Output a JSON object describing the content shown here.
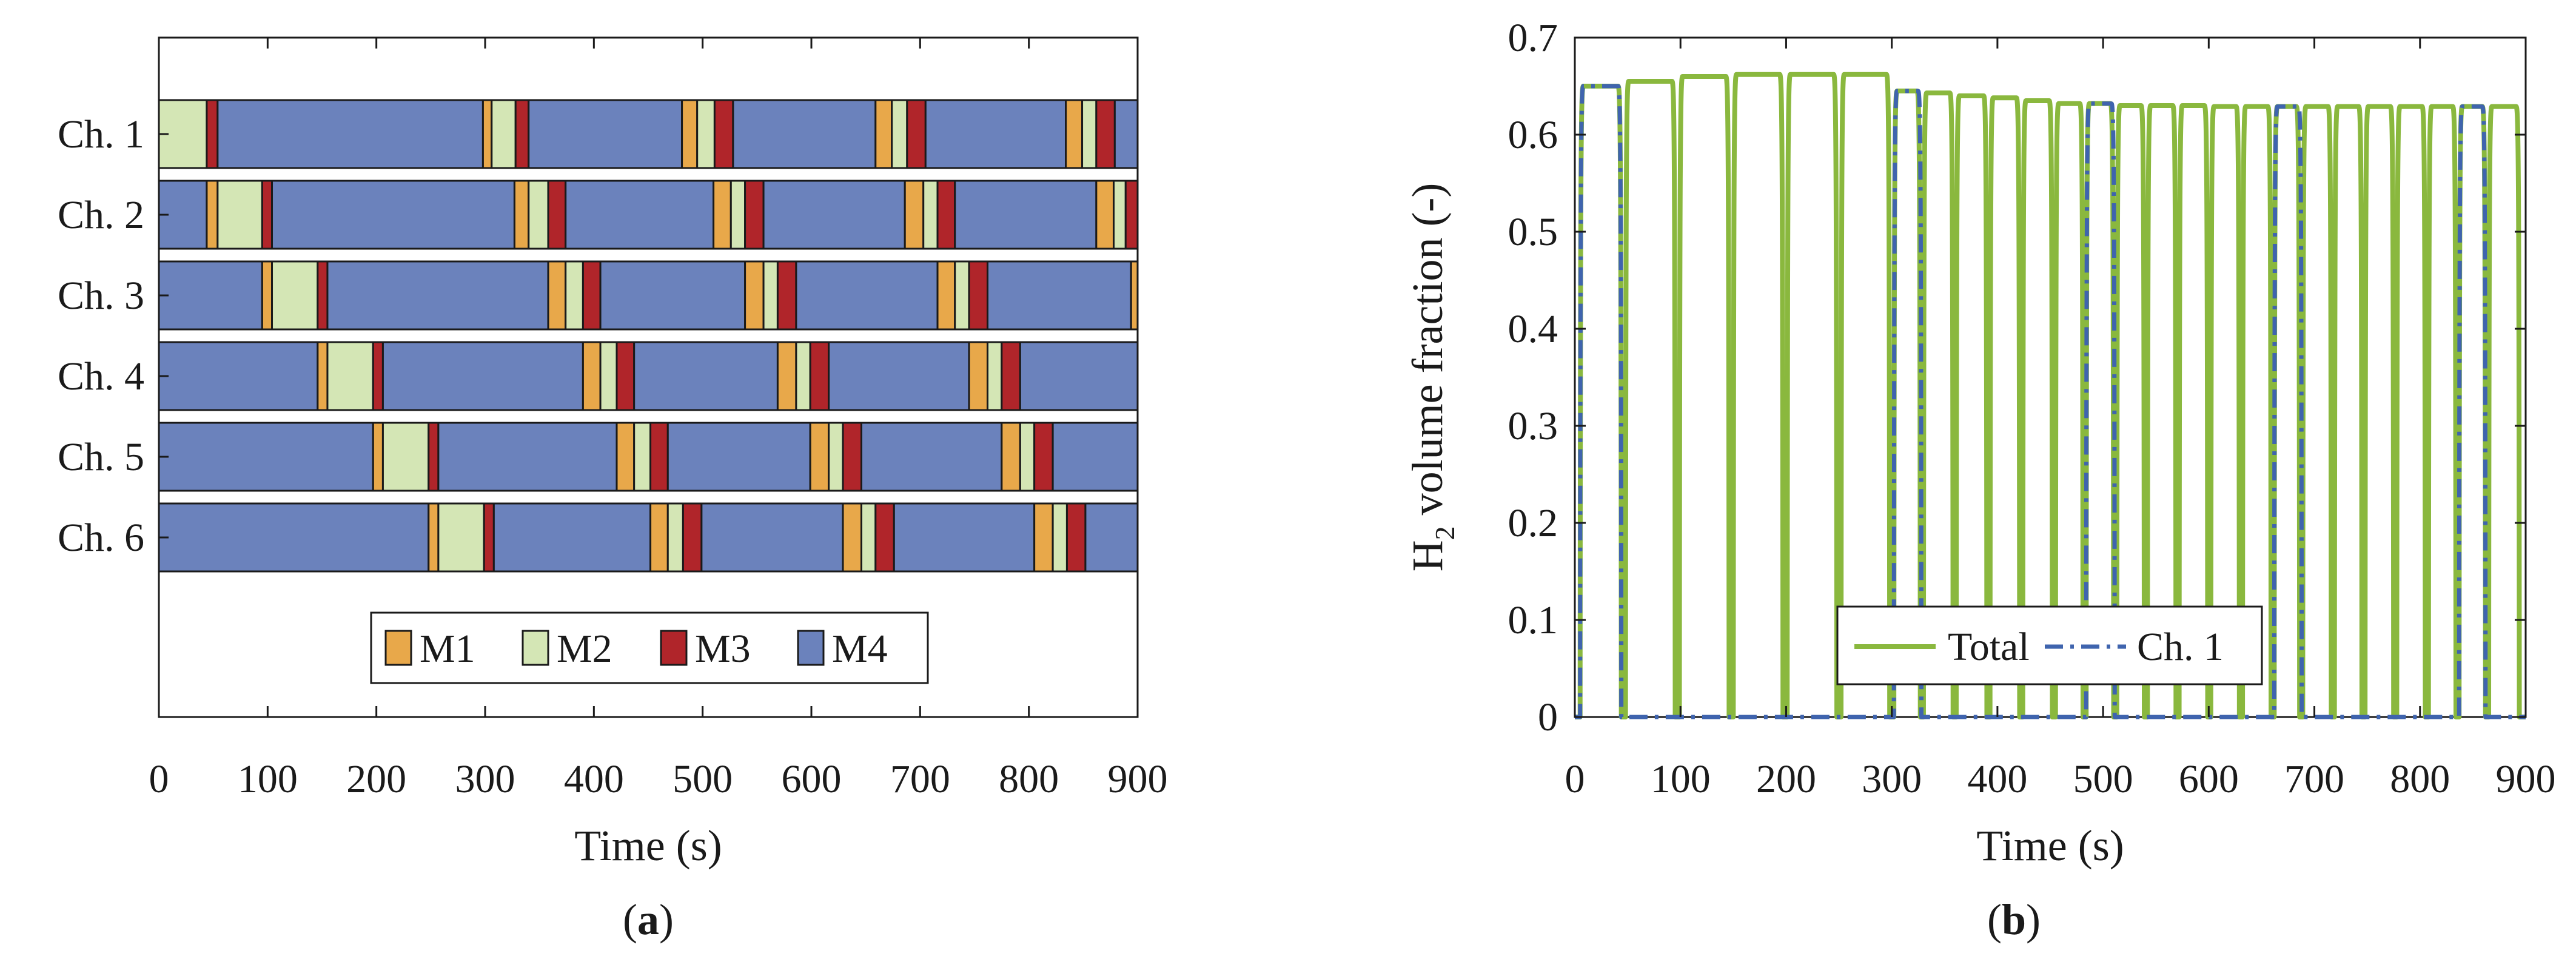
{
  "chart_data": [
    {
      "type": "bar",
      "subtype": "gantt",
      "panel_label": "a",
      "xlabel": "Time (s)",
      "ylabel": "",
      "xlim": [
        0,
        900
      ],
      "xticks": [
        0,
        100,
        200,
        300,
        400,
        500,
        600,
        700,
        800,
        900
      ],
      "categories": [
        "Ch. 1",
        "Ch. 2",
        "Ch. 3",
        "Ch. 4",
        "Ch. 5",
        "Ch. 6"
      ],
      "modes": [
        {
          "name": "M1",
          "color": "#E8A84A"
        },
        {
          "name": "M2",
          "color": "#D4E6B5"
        },
        {
          "name": "M3",
          "color": "#B0252A"
        },
        {
          "name": "M4",
          "color": "#6B82BC"
        }
      ],
      "legend_placement": "bottom-center",
      "rows": [
        {
          "channel": "Ch. 1",
          "segments": [
            {
              "mode": "M2",
              "start": 0,
              "end": 44
            },
            {
              "mode": "M3",
              "start": 44,
              "end": 54
            },
            {
              "mode": "M4",
              "start": 54,
              "end": 298
            },
            {
              "mode": "M1",
              "start": 298,
              "end": 306
            },
            {
              "mode": "M2",
              "start": 306,
              "end": 328
            },
            {
              "mode": "M3",
              "start": 328,
              "end": 340
            },
            {
              "mode": "M4",
              "start": 340,
              "end": 481
            },
            {
              "mode": "M1",
              "start": 481,
              "end": 495
            },
            {
              "mode": "M2",
              "start": 495,
              "end": 511
            },
            {
              "mode": "M3",
              "start": 511,
              "end": 528
            },
            {
              "mode": "M4",
              "start": 528,
              "end": 659
            },
            {
              "mode": "M1",
              "start": 659,
              "end": 674
            },
            {
              "mode": "M2",
              "start": 674,
              "end": 688
            },
            {
              "mode": "M3",
              "start": 688,
              "end": 705
            },
            {
              "mode": "M4",
              "start": 705,
              "end": 834
            },
            {
              "mode": "M1",
              "start": 834,
              "end": 849
            },
            {
              "mode": "M2",
              "start": 849,
              "end": 862
            },
            {
              "mode": "M3",
              "start": 862,
              "end": 879
            },
            {
              "mode": "M4",
              "start": 879,
              "end": 900
            }
          ]
        },
        {
          "channel": "Ch. 2",
          "segments": [
            {
              "mode": "M4",
              "start": 0,
              "end": 44
            },
            {
              "mode": "M1",
              "start": 44,
              "end": 54
            },
            {
              "mode": "M2",
              "start": 54,
              "end": 95
            },
            {
              "mode": "M3",
              "start": 95,
              "end": 104
            },
            {
              "mode": "M4",
              "start": 104,
              "end": 327
            },
            {
              "mode": "M1",
              "start": 327,
              "end": 340
            },
            {
              "mode": "M2",
              "start": 340,
              "end": 358
            },
            {
              "mode": "M3",
              "start": 358,
              "end": 374
            },
            {
              "mode": "M4",
              "start": 374,
              "end": 510
            },
            {
              "mode": "M1",
              "start": 510,
              "end": 526
            },
            {
              "mode": "M2",
              "start": 526,
              "end": 539
            },
            {
              "mode": "M3",
              "start": 539,
              "end": 556
            },
            {
              "mode": "M4",
              "start": 556,
              "end": 686
            },
            {
              "mode": "M1",
              "start": 686,
              "end": 703
            },
            {
              "mode": "M2",
              "start": 703,
              "end": 716
            },
            {
              "mode": "M3",
              "start": 716,
              "end": 732
            },
            {
              "mode": "M4",
              "start": 732,
              "end": 862
            },
            {
              "mode": "M1",
              "start": 862,
              "end": 878
            },
            {
              "mode": "M2",
              "start": 878,
              "end": 889
            },
            {
              "mode": "M3",
              "start": 889,
              "end": 900
            }
          ]
        },
        {
          "channel": "Ch. 3",
          "segments": [
            {
              "mode": "M4",
              "start": 0,
              "end": 95
            },
            {
              "mode": "M1",
              "start": 95,
              "end": 104
            },
            {
              "mode": "M2",
              "start": 104,
              "end": 146
            },
            {
              "mode": "M3",
              "start": 146,
              "end": 155
            },
            {
              "mode": "M4",
              "start": 155,
              "end": 358
            },
            {
              "mode": "M1",
              "start": 358,
              "end": 374
            },
            {
              "mode": "M2",
              "start": 374,
              "end": 390
            },
            {
              "mode": "M3",
              "start": 390,
              "end": 406
            },
            {
              "mode": "M4",
              "start": 406,
              "end": 539
            },
            {
              "mode": "M1",
              "start": 539,
              "end": 556
            },
            {
              "mode": "M2",
              "start": 556,
              "end": 569
            },
            {
              "mode": "M3",
              "start": 569,
              "end": 586
            },
            {
              "mode": "M4",
              "start": 586,
              "end": 716
            },
            {
              "mode": "M1",
              "start": 716,
              "end": 732
            },
            {
              "mode": "M2",
              "start": 732,
              "end": 745
            },
            {
              "mode": "M3",
              "start": 745,
              "end": 762
            },
            {
              "mode": "M4",
              "start": 762,
              "end": 894
            },
            {
              "mode": "M1",
              "start": 894,
              "end": 900
            }
          ]
        },
        {
          "channel": "Ch. 4",
          "segments": [
            {
              "mode": "M4",
              "start": 0,
              "end": 146
            },
            {
              "mode": "M1",
              "start": 146,
              "end": 155
            },
            {
              "mode": "M2",
              "start": 155,
              "end": 197
            },
            {
              "mode": "M3",
              "start": 197,
              "end": 206
            },
            {
              "mode": "M4",
              "start": 206,
              "end": 390
            },
            {
              "mode": "M1",
              "start": 390,
              "end": 406
            },
            {
              "mode": "M2",
              "start": 406,
              "end": 421
            },
            {
              "mode": "M3",
              "start": 421,
              "end": 437
            },
            {
              "mode": "M4",
              "start": 437,
              "end": 569
            },
            {
              "mode": "M1",
              "start": 569,
              "end": 586
            },
            {
              "mode": "M2",
              "start": 586,
              "end": 599
            },
            {
              "mode": "M3",
              "start": 599,
              "end": 616
            },
            {
              "mode": "M4",
              "start": 616,
              "end": 745
            },
            {
              "mode": "M1",
              "start": 745,
              "end": 762
            },
            {
              "mode": "M2",
              "start": 762,
              "end": 775
            },
            {
              "mode": "M3",
              "start": 775,
              "end": 792
            },
            {
              "mode": "M4",
              "start": 792,
              "end": 900
            }
          ]
        },
        {
          "channel": "Ch. 5",
          "segments": [
            {
              "mode": "M4",
              "start": 0,
              "end": 197
            },
            {
              "mode": "M1",
              "start": 197,
              "end": 206
            },
            {
              "mode": "M2",
              "start": 206,
              "end": 248
            },
            {
              "mode": "M3",
              "start": 248,
              "end": 257
            },
            {
              "mode": "M4",
              "start": 257,
              "end": 421
            },
            {
              "mode": "M1",
              "start": 421,
              "end": 437
            },
            {
              "mode": "M2",
              "start": 437,
              "end": 452
            },
            {
              "mode": "M3",
              "start": 452,
              "end": 468
            },
            {
              "mode": "M4",
              "start": 468,
              "end": 599
            },
            {
              "mode": "M1",
              "start": 599,
              "end": 616
            },
            {
              "mode": "M2",
              "start": 616,
              "end": 629
            },
            {
              "mode": "M3",
              "start": 629,
              "end": 646
            },
            {
              "mode": "M4",
              "start": 646,
              "end": 775
            },
            {
              "mode": "M1",
              "start": 775,
              "end": 792
            },
            {
              "mode": "M2",
              "start": 792,
              "end": 805
            },
            {
              "mode": "M3",
              "start": 805,
              "end": 822
            },
            {
              "mode": "M4",
              "start": 822,
              "end": 900
            }
          ]
        },
        {
          "channel": "Ch. 6",
          "segments": [
            {
              "mode": "M4",
              "start": 0,
              "end": 248
            },
            {
              "mode": "M1",
              "start": 248,
              "end": 257
            },
            {
              "mode": "M2",
              "start": 257,
              "end": 299
            },
            {
              "mode": "M3",
              "start": 299,
              "end": 308
            },
            {
              "mode": "M4",
              "start": 308,
              "end": 452
            },
            {
              "mode": "M1",
              "start": 452,
              "end": 468
            },
            {
              "mode": "M2",
              "start": 468,
              "end": 482
            },
            {
              "mode": "M3",
              "start": 482,
              "end": 499
            },
            {
              "mode": "M4",
              "start": 499,
              "end": 629
            },
            {
              "mode": "M1",
              "start": 629,
              "end": 646
            },
            {
              "mode": "M2",
              "start": 646,
              "end": 659
            },
            {
              "mode": "M3",
              "start": 659,
              "end": 676
            },
            {
              "mode": "M4",
              "start": 676,
              "end": 805
            },
            {
              "mode": "M1",
              "start": 805,
              "end": 822
            },
            {
              "mode": "M2",
              "start": 822,
              "end": 835
            },
            {
              "mode": "M3",
              "start": 835,
              "end": 852
            },
            {
              "mode": "M4",
              "start": 852,
              "end": 900
            }
          ]
        }
      ]
    },
    {
      "type": "line",
      "panel_label": "b",
      "xlabel": "Time (s)",
      "ylabel_main": "H",
      "ylabel_sub": "2",
      "ylabel_rest": "volume fraction (-)",
      "xlim": [
        0,
        900
      ],
      "ylim": [
        0,
        0.7
      ],
      "xticks": [
        0,
        100,
        200,
        300,
        400,
        500,
        600,
        700,
        800,
        900
      ],
      "yticks": [
        "0",
        "0.1",
        "0.2",
        "0.3",
        "0.4",
        "0.5",
        "0.6",
        "0.7"
      ],
      "grid": false,
      "legend_placement": "bottom-center",
      "series": [
        {
          "name": "Total",
          "color": "#8AB83E",
          "style": "solid",
          "description_of_values": "pulses: each pulse rises from 0 to plateau at start, falls to 0 at end",
          "pulses": [
            {
              "start": 5,
              "end": 44,
              "level": 0.65
            },
            {
              "start": 48,
              "end": 95,
              "level": 0.655
            },
            {
              "start": 99,
              "end": 146,
              "level": 0.66
            },
            {
              "start": 150,
              "end": 197,
              "level": 0.662
            },
            {
              "start": 201,
              "end": 248,
              "level": 0.662
            },
            {
              "start": 252,
              "end": 298,
              "level": 0.662
            },
            {
              "start": 302,
              "end": 327,
              "level": 0.645
            },
            {
              "start": 330,
              "end": 358,
              "level": 0.643
            },
            {
              "start": 361,
              "end": 390,
              "level": 0.64
            },
            {
              "start": 393,
              "end": 421,
              "level": 0.638
            },
            {
              "start": 424,
              "end": 452,
              "level": 0.635
            },
            {
              "start": 455,
              "end": 481,
              "level": 0.632
            },
            {
              "start": 484,
              "end": 510,
              "level": 0.632
            },
            {
              "start": 513,
              "end": 539,
              "level": 0.63
            },
            {
              "start": 542,
              "end": 569,
              "level": 0.63
            },
            {
              "start": 572,
              "end": 599,
              "level": 0.63
            },
            {
              "start": 602,
              "end": 629,
              "level": 0.629
            },
            {
              "start": 632,
              "end": 659,
              "level": 0.629
            },
            {
              "start": 662,
              "end": 686,
              "level": 0.629
            },
            {
              "start": 689,
              "end": 716,
              "level": 0.629
            },
            {
              "start": 719,
              "end": 745,
              "level": 0.629
            },
            {
              "start": 748,
              "end": 775,
              "level": 0.629
            },
            {
              "start": 778,
              "end": 805,
              "level": 0.629
            },
            {
              "start": 808,
              "end": 834,
              "level": 0.629
            },
            {
              "start": 837,
              "end": 862,
              "level": 0.629
            },
            {
              "start": 865,
              "end": 894,
              "level": 0.629
            }
          ]
        },
        {
          "name": "Ch. 1",
          "color": "#3F64AE",
          "style": "dashdot",
          "pulses": [
            {
              "start": 5,
              "end": 44,
              "level": 0.65
            },
            {
              "start": 302,
              "end": 328,
              "level": 0.645
            },
            {
              "start": 484,
              "end": 511,
              "level": 0.632
            },
            {
              "start": 662,
              "end": 688,
              "level": 0.629
            },
            {
              "start": 837,
              "end": 862,
              "level": 0.629
            }
          ]
        }
      ]
    }
  ]
}
